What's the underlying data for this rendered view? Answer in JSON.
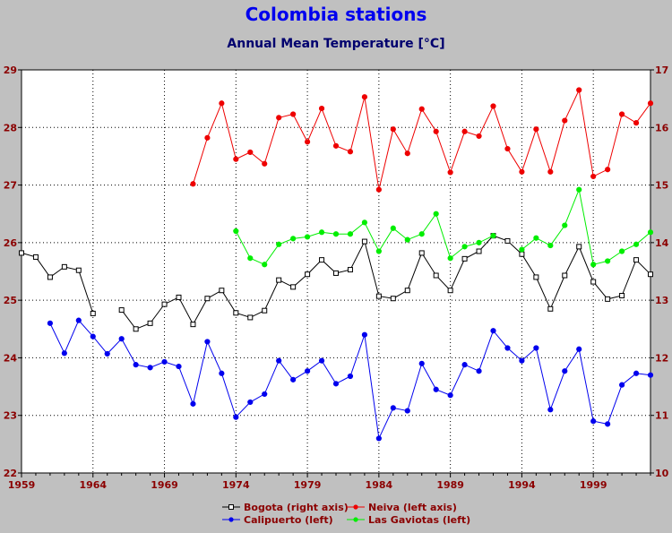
{
  "chart_data": {
    "type": "line",
    "title": "Colombia stations",
    "subtitle": "Annual Mean Temperature [°C]",
    "xlim": [
      1959,
      2003
    ],
    "x_ticks": [
      1959,
      1964,
      1969,
      1974,
      1979,
      1984,
      1989,
      1994,
      1999
    ],
    "ylim_left": [
      22,
      29
    ],
    "ylim_right": [
      10,
      17
    ],
    "y_ticks_left": [
      22,
      23,
      24,
      25,
      26,
      27,
      28,
      29
    ],
    "y_ticks_right": [
      10,
      11,
      12,
      13,
      14,
      15,
      16,
      17
    ],
    "grid": true,
    "legend_position": "bottom",
    "series": [
      {
        "name": "Bogota (right axis)",
        "axis": "right",
        "color": "#000000",
        "marker": "square",
        "points": [
          [
            1959,
            13.82
          ],
          [
            1960,
            13.75
          ],
          [
            1961,
            13.4
          ],
          [
            1962,
            13.58
          ],
          [
            1963,
            13.52
          ],
          [
            1964,
            12.77
          ],
          [
            1966,
            12.83
          ],
          [
            1967,
            12.5
          ],
          [
            1968,
            12.6
          ],
          [
            1969,
            12.93
          ],
          [
            1970,
            13.05
          ],
          [
            1971,
            12.58
          ],
          [
            1972,
            13.03
          ],
          [
            1973,
            13.17
          ],
          [
            1974,
            12.78
          ],
          [
            1975,
            12.7
          ],
          [
            1976,
            12.82
          ],
          [
            1977,
            13.35
          ],
          [
            1978,
            13.23
          ],
          [
            1979,
            13.45
          ],
          [
            1980,
            13.7
          ],
          [
            1981,
            13.47
          ],
          [
            1982,
            13.53
          ],
          [
            1983,
            14.02
          ],
          [
            1984,
            13.07
          ],
          [
            1985,
            13.03
          ],
          [
            1986,
            13.17
          ],
          [
            1987,
            13.82
          ],
          [
            1988,
            13.43
          ],
          [
            1989,
            13.17
          ],
          [
            1990,
            13.72
          ],
          [
            1991,
            13.85
          ],
          [
            1992,
            14.12
          ],
          [
            1993,
            14.03
          ],
          [
            1994,
            13.8
          ],
          [
            1995,
            13.4
          ],
          [
            1996,
            12.85
          ],
          [
            1997,
            13.43
          ],
          [
            1998,
            13.93
          ],
          [
            1999,
            13.32
          ],
          [
            2000,
            13.02
          ],
          [
            2001,
            13.08
          ],
          [
            2002,
            13.7
          ],
          [
            2003,
            13.45
          ]
        ]
      },
      {
        "name": "Neiva (left axis)",
        "axis": "left",
        "color": "#ee0000",
        "marker": "circle",
        "points": [
          [
            1971,
            27.02
          ],
          [
            1972,
            27.82
          ],
          [
            1973,
            28.42
          ],
          [
            1974,
            27.45
          ],
          [
            1975,
            27.57
          ],
          [
            1976,
            27.37
          ],
          [
            1977,
            28.17
          ],
          [
            1978,
            28.23
          ],
          [
            1979,
            27.75
          ],
          [
            1980,
            28.33
          ],
          [
            1981,
            27.68
          ],
          [
            1982,
            27.58
          ],
          [
            1983,
            28.53
          ],
          [
            1984,
            26.92
          ],
          [
            1985,
            27.97
          ],
          [
            1986,
            27.55
          ],
          [
            1987,
            28.32
          ],
          [
            1988,
            27.93
          ],
          [
            1989,
            27.22
          ],
          [
            1990,
            27.93
          ],
          [
            1991,
            27.85
          ],
          [
            1992,
            28.37
          ],
          [
            1993,
            27.63
          ],
          [
            1994,
            27.23
          ],
          [
            1995,
            27.97
          ],
          [
            1996,
            27.23
          ],
          [
            1997,
            28.12
          ],
          [
            1998,
            28.65
          ],
          [
            1999,
            27.15
          ],
          [
            2000,
            27.27
          ],
          [
            2001,
            28.23
          ],
          [
            2002,
            28.08
          ],
          [
            2003,
            28.42
          ]
        ]
      },
      {
        "name": "Calipuerto (left)",
        "axis": "left",
        "color": "#0000ee",
        "marker": "circle",
        "points": [
          [
            1961,
            24.6
          ],
          [
            1962,
            24.08
          ],
          [
            1963,
            24.65
          ],
          [
            1964,
            24.37
          ],
          [
            1965,
            24.07
          ],
          [
            1966,
            24.33
          ],
          [
            1967,
            23.88
          ],
          [
            1968,
            23.83
          ],
          [
            1969,
            23.93
          ],
          [
            1970,
            23.85
          ],
          [
            1971,
            23.2
          ],
          [
            1972,
            24.28
          ],
          [
            1973,
            23.73
          ],
          [
            1974,
            22.97
          ],
          [
            1975,
            23.23
          ],
          [
            1976,
            23.37
          ],
          [
            1977,
            23.95
          ],
          [
            1978,
            23.62
          ],
          [
            1979,
            23.77
          ],
          [
            1980,
            23.95
          ],
          [
            1981,
            23.55
          ],
          [
            1982,
            23.68
          ],
          [
            1983,
            24.4
          ],
          [
            1984,
            22.6
          ],
          [
            1985,
            23.13
          ],
          [
            1986,
            23.08
          ],
          [
            1987,
            23.9
          ],
          [
            1988,
            23.45
          ],
          [
            1989,
            23.35
          ],
          [
            1990,
            23.88
          ],
          [
            1991,
            23.77
          ],
          [
            1992,
            24.47
          ],
          [
            1993,
            24.17
          ],
          [
            1994,
            23.95
          ],
          [
            1995,
            24.17
          ],
          [
            1996,
            23.1
          ],
          [
            1997,
            23.77
          ],
          [
            1998,
            24.15
          ],
          [
            1999,
            22.9
          ],
          [
            2000,
            22.85
          ],
          [
            2001,
            23.53
          ],
          [
            2002,
            23.73
          ],
          [
            2003,
            23.7
          ]
        ]
      },
      {
        "name": "Las Gaviotas (left)",
        "axis": "left",
        "color": "#00ee00",
        "marker": "circle",
        "points": [
          [
            1974,
            26.2
          ],
          [
            1975,
            25.73
          ],
          [
            1976,
            25.62
          ],
          [
            1977,
            25.97
          ],
          [
            1978,
            26.07
          ],
          [
            1979,
            26.1
          ],
          [
            1980,
            26.18
          ],
          [
            1981,
            26.15
          ],
          [
            1982,
            26.15
          ],
          [
            1983,
            26.35
          ],
          [
            1984,
            25.85
          ],
          [
            1985,
            26.25
          ],
          [
            1986,
            26.05
          ],
          [
            1987,
            26.15
          ],
          [
            1988,
            26.5
          ],
          [
            1989,
            25.73
          ],
          [
            1990,
            25.93
          ],
          [
            1991,
            26.0
          ],
          [
            1992,
            26.12
          ],
          [
            1993,
            null
          ],
          [
            1994,
            25.88
          ],
          [
            1995,
            26.08
          ],
          [
            1996,
            25.95
          ],
          [
            1997,
            26.3
          ],
          [
            1998,
            26.92
          ],
          [
            1999,
            25.62
          ],
          [
            2000,
            25.68
          ],
          [
            2001,
            25.85
          ],
          [
            2002,
            25.97
          ],
          [
            2003,
            26.18
          ]
        ]
      }
    ]
  }
}
